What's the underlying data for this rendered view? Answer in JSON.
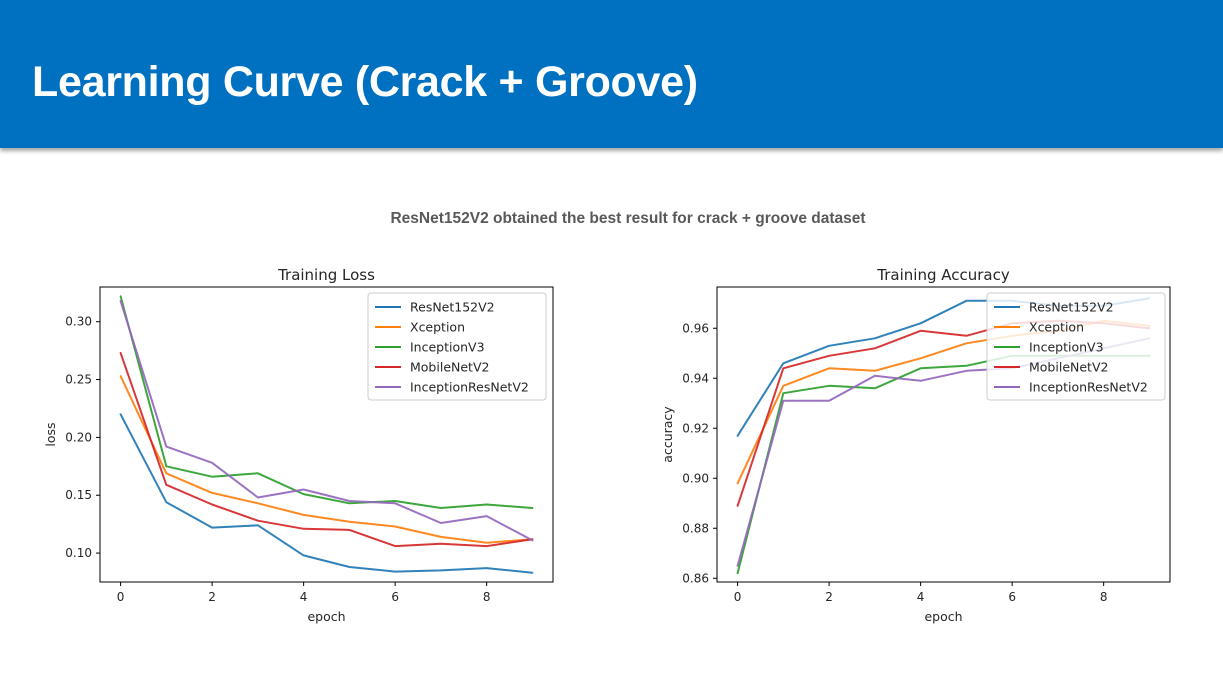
{
  "slide": {
    "title": "Learning Curve (Crack + Groove)",
    "subtitle": "ResNet152V2 obtained the best result for crack + groove dataset"
  },
  "chart_data": [
    {
      "type": "line",
      "title": "Training Loss",
      "xlabel": "epoch",
      "ylabel": "loss",
      "xlim": [
        -0.45,
        9.45
      ],
      "ylim": [
        0.075,
        0.33
      ],
      "xticks": [
        0,
        2,
        4,
        6,
        8
      ],
      "yticks": [
        0.1,
        0.15,
        0.2,
        0.25,
        0.3
      ],
      "ytick_decimals": 2,
      "grid": false,
      "legend": "top-right",
      "x": [
        0,
        1,
        2,
        3,
        4,
        5,
        6,
        7,
        8,
        9
      ],
      "series": [
        {
          "name": "ResNet152V2",
          "color": "#1f77b4",
          "values": [
            0.22,
            0.144,
            0.122,
            0.124,
            0.098,
            0.088,
            0.084,
            0.085,
            0.087,
            0.083
          ]
        },
        {
          "name": "Xception",
          "color": "#ff7f0e",
          "values": [
            0.253,
            0.169,
            0.152,
            0.143,
            0.133,
            0.127,
            0.123,
            0.114,
            0.109,
            0.112
          ]
        },
        {
          "name": "InceptionV3",
          "color": "#2ca02c",
          "values": [
            0.322,
            0.175,
            0.166,
            0.169,
            0.151,
            0.143,
            0.145,
            0.139,
            0.142,
            0.139
          ]
        },
        {
          "name": "MobileNetV2",
          "color": "#d62728",
          "values": [
            0.273,
            0.159,
            0.142,
            0.128,
            0.121,
            0.12,
            0.106,
            0.108,
            0.106,
            0.112
          ]
        },
        {
          "name": "InceptionResNetV2",
          "color": "#9467bd",
          "values": [
            0.318,
            0.192,
            0.178,
            0.148,
            0.155,
            0.145,
            0.143,
            0.126,
            0.132,
            0.111
          ]
        }
      ]
    },
    {
      "type": "line",
      "title": "Training Accuracy",
      "xlabel": "epoch",
      "ylabel": "accuracy",
      "xlim": [
        -0.45,
        9.45
      ],
      "ylim": [
        0.8585,
        0.9765
      ],
      "xticks": [
        0,
        2,
        4,
        6,
        8
      ],
      "yticks": [
        0.86,
        0.88,
        0.9,
        0.92,
        0.94,
        0.96
      ],
      "ytick_decimals": 2,
      "grid": false,
      "legend": "top-right",
      "x": [
        0,
        1,
        2,
        3,
        4,
        5,
        6,
        7,
        8,
        9
      ],
      "series": [
        {
          "name": "ResNet152V2",
          "color": "#1f77b4",
          "values": [
            0.917,
            0.946,
            0.953,
            0.956,
            0.962,
            0.971,
            0.971,
            0.969,
            0.969,
            0.972
          ]
        },
        {
          "name": "Xception",
          "color": "#ff7f0e",
          "values": [
            0.898,
            0.937,
            0.944,
            0.943,
            0.948,
            0.954,
            0.957,
            0.959,
            0.963,
            0.961
          ]
        },
        {
          "name": "InceptionV3",
          "color": "#2ca02c",
          "values": [
            0.862,
            0.934,
            0.937,
            0.936,
            0.944,
            0.945,
            0.949,
            0.949,
            0.949,
            0.949
          ]
        },
        {
          "name": "MobileNetV2",
          "color": "#d62728",
          "values": [
            0.889,
            0.944,
            0.949,
            0.952,
            0.959,
            0.957,
            0.962,
            0.963,
            0.962,
            0.96
          ]
        },
        {
          "name": "InceptionResNetV2",
          "color": "#9467bd",
          "values": [
            0.865,
            0.931,
            0.931,
            0.941,
            0.939,
            0.943,
            0.944,
            0.948,
            0.952,
            0.956
          ]
        }
      ]
    }
  ]
}
